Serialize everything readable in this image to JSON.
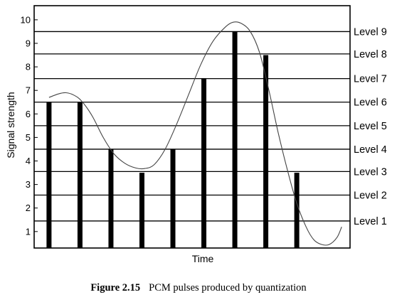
{
  "chart_data": {
    "type": "bar",
    "title": "",
    "xlabel": "Time",
    "ylabel": "Signal strength",
    "ylim": [
      0.3,
      10.6
    ],
    "yticks": [
      "1",
      "2",
      "3",
      "4",
      "5",
      "6",
      "7",
      "8",
      "9",
      "10"
    ],
    "levels": [
      "Level 1",
      "Level 2",
      "Level 3",
      "Level 4",
      "Level 5",
      "Level 6",
      "Level 7",
      "Level 8",
      "Level 9"
    ],
    "level_values": [
      1.45,
      2.55,
      3.55,
      4.5,
      5.5,
      6.5,
      7.5,
      8.55,
      9.5
    ],
    "pulses": [
      6.5,
      6.5,
      4.5,
      3.5,
      4.5,
      7.5,
      9.5,
      8.5,
      3.5
    ],
    "signal_curve": [
      [
        0.0,
        6.7
      ],
      [
        0.3,
        6.85
      ],
      [
        0.55,
        6.9
      ],
      [
        0.8,
        6.8
      ],
      [
        1.05,
        6.55
      ],
      [
        1.4,
        5.9
      ],
      [
        1.75,
        5.0
      ],
      [
        2.1,
        4.3
      ],
      [
        2.45,
        3.9
      ],
      [
        2.8,
        3.7
      ],
      [
        3.1,
        3.68
      ],
      [
        3.4,
        3.85
      ],
      [
        3.75,
        4.5
      ],
      [
        4.1,
        5.5
      ],
      [
        4.5,
        6.8
      ],
      [
        4.9,
        8.1
      ],
      [
        5.3,
        9.1
      ],
      [
        5.7,
        9.7
      ],
      [
        5.95,
        9.9
      ],
      [
        6.2,
        9.85
      ],
      [
        6.5,
        9.5
      ],
      [
        6.8,
        8.6
      ],
      [
        7.1,
        7.0
      ],
      [
        7.4,
        5.2
      ],
      [
        7.7,
        3.6
      ],
      [
        8.0,
        2.2
      ],
      [
        8.3,
        1.2
      ],
      [
        8.55,
        0.65
      ],
      [
        8.8,
        0.45
      ],
      [
        9.05,
        0.45
      ],
      [
        9.3,
        0.75
      ],
      [
        9.45,
        1.2
      ]
    ],
    "grid": false
  },
  "caption": {
    "label": "Figure 2.15",
    "text": "PCM pulses produced by quantization"
  },
  "colors": {
    "bar": "#000000",
    "curve": "#444444",
    "axis": "#000000"
  }
}
